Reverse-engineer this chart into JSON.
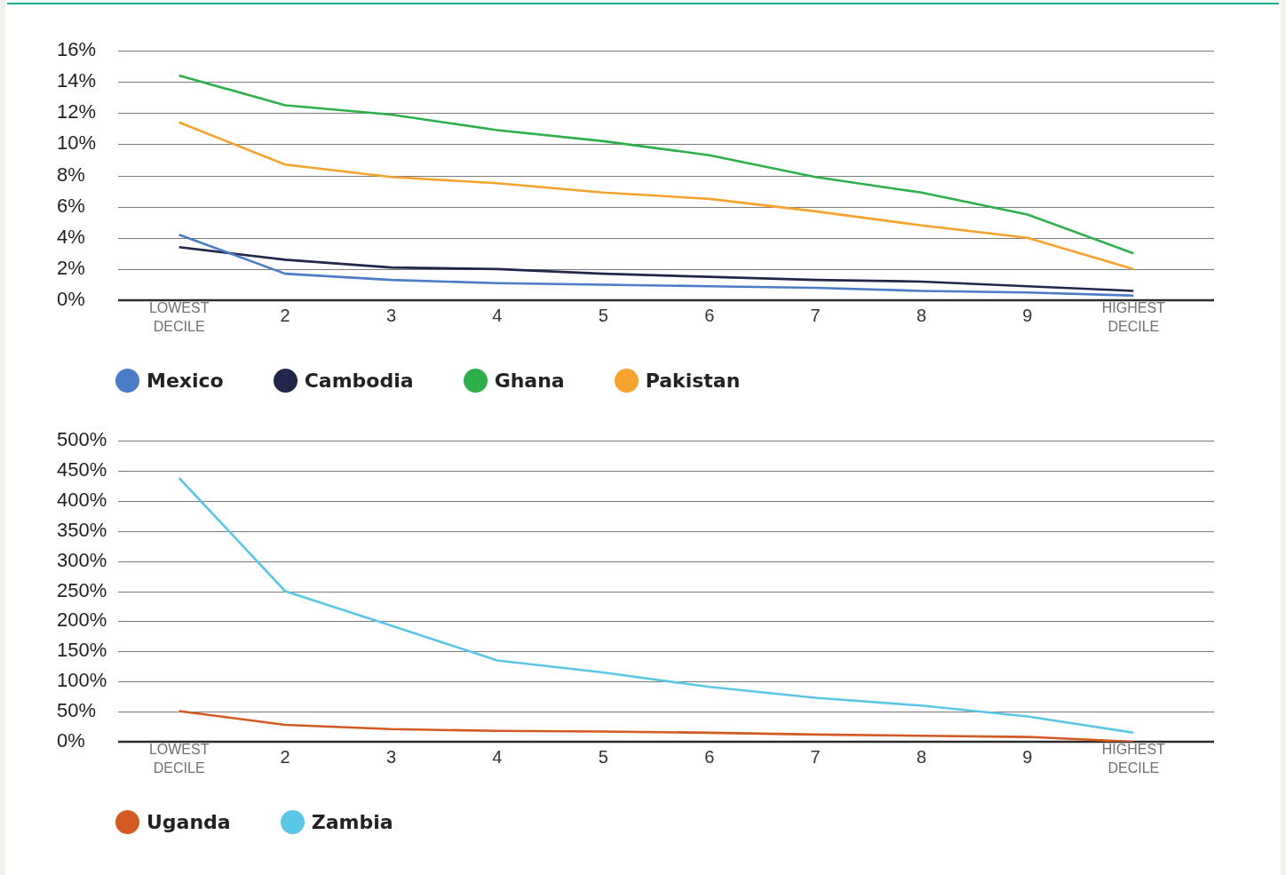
{
  "chart_data": [
    {
      "type": "line",
      "categories": [
        "LOWEST DECILE",
        "2",
        "3",
        "4",
        "5",
        "6",
        "7",
        "8",
        "9",
        "HIGHEST DECILE"
      ],
      "series": [
        {
          "name": "Mexico",
          "color": "#4a7cc8",
          "values": [
            4.2,
            1.7,
            1.3,
            1.1,
            1.0,
            0.9,
            0.8,
            0.6,
            0.5,
            0.3
          ]
        },
        {
          "name": "Cambodia",
          "color": "#22264a",
          "values": [
            3.4,
            2.6,
            2.1,
            2.0,
            1.7,
            1.5,
            1.3,
            1.2,
            0.9,
            0.6
          ]
        },
        {
          "name": "Ghana",
          "color": "#2db04b",
          "values": [
            14.4,
            12.5,
            11.9,
            10.9,
            10.2,
            9.3,
            7.9,
            6.9,
            5.5,
            3.0
          ]
        },
        {
          "name": "Pakistan",
          "color": "#f6a22f",
          "values": [
            11.4,
            8.7,
            7.9,
            7.5,
            6.9,
            6.5,
            5.7,
            4.8,
            4.0,
            2.0
          ]
        }
      ],
      "ylim": [
        0,
        16
      ],
      "yticks": [
        {
          "value": 0,
          "label": "0%"
        },
        {
          "value": 2,
          "label": "2%"
        },
        {
          "value": 4,
          "label": "4%"
        },
        {
          "value": 6,
          "label": "6%"
        },
        {
          "value": 8,
          "label": "8%"
        },
        {
          "value": 10,
          "label": "10%"
        },
        {
          "value": 12,
          "label": "12%"
        },
        {
          "value": 14,
          "label": "14%"
        },
        {
          "value": 16,
          "label": "16%"
        }
      ],
      "grid": "y",
      "legend": "bottom left"
    },
    {
      "type": "line",
      "categories": [
        "LOWEST DECILE",
        "2",
        "3",
        "4",
        "5",
        "6",
        "7",
        "8",
        "9",
        "HIGHEST DECILE"
      ],
      "series": [
        {
          "name": "Uganda",
          "color": "#d35a23",
          "values": [
            51,
            28,
            21,
            18,
            17,
            15,
            12,
            10,
            8,
            0
          ]
        },
        {
          "name": "Zambia",
          "color": "#5cc6e6",
          "values": [
            438,
            250,
            193,
            135,
            115,
            91,
            73,
            60,
            42,
            15
          ]
        }
      ],
      "ylim": [
        0,
        500
      ],
      "yticks": [
        {
          "value": 0,
          "label": "0%"
        },
        {
          "value": 50,
          "label": "50%"
        },
        {
          "value": 100,
          "label": "100%"
        },
        {
          "value": 150,
          "label": "150%"
        },
        {
          "value": 200,
          "label": "200%"
        },
        {
          "value": 250,
          "label": "250%"
        },
        {
          "value": 300,
          "label": "300%"
        },
        {
          "value": 350,
          "label": "350%"
        },
        {
          "value": 400,
          "label": "400%"
        },
        {
          "value": 450,
          "label": "450%"
        },
        {
          "value": 500,
          "label": "500%"
        }
      ],
      "grid": "y",
      "legend": "bottom left"
    }
  ]
}
